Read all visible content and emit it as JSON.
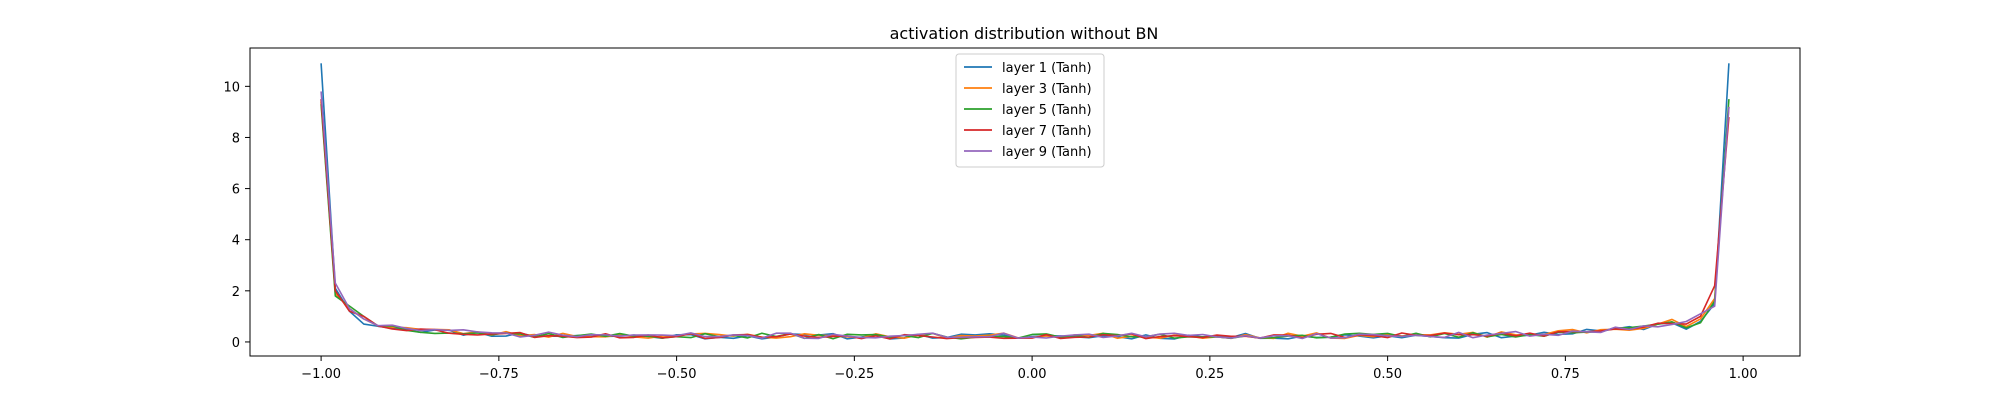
{
  "chart_data": {
    "type": "line",
    "title": "activation distribution without BN",
    "xlabel": "",
    "ylabel": "",
    "xlim": [
      -1.1,
      1.08
    ],
    "ylim": [
      -0.55,
      11.5
    ],
    "xticks": [
      -1.0,
      -0.75,
      -0.5,
      -0.25,
      0.0,
      0.25,
      0.5,
      0.75,
      1.0
    ],
    "xtick_labels": [
      "−1.00",
      "−0.75",
      "−0.50",
      "−0.25",
      "0.00",
      "0.25",
      "0.50",
      "0.75",
      "1.00"
    ],
    "yticks": [
      0,
      2,
      4,
      6,
      8,
      10
    ],
    "ytick_labels": [
      "0",
      "2",
      "4",
      "6",
      "8",
      "10"
    ],
    "grid": false,
    "legend_position": "top-center",
    "series": [
      {
        "name": "layer 1 (Tanh)",
        "color": "#1f77b4",
        "edge_values": [
          10.9,
          2.1,
          1.2,
          0.7
        ],
        "right_edge": [
          0.5,
          0.8,
          1.5,
          10.9
        ],
        "base": 0.22,
        "seed": 11
      },
      {
        "name": "layer 3 (Tanh)",
        "color": "#ff7f0e",
        "edge_values": [
          9.4,
          1.9,
          1.3,
          0.9
        ],
        "right_edge": [
          0.6,
          0.9,
          1.7,
          9.2
        ],
        "base": 0.24,
        "seed": 23
      },
      {
        "name": "layer 5 (Tanh)",
        "color": "#2ca02c",
        "edge_values": [
          9.3,
          1.8,
          1.4,
          1.0
        ],
        "right_edge": [
          0.55,
          0.75,
          1.6,
          9.5
        ],
        "base": 0.23,
        "seed": 37
      },
      {
        "name": "layer 7 (Tanh)",
        "color": "#d62728",
        "edge_values": [
          9.5,
          2.0,
          1.2,
          1.0
        ],
        "right_edge": [
          0.7,
          1.0,
          2.2,
          8.8
        ],
        "base": 0.23,
        "seed": 53
      },
      {
        "name": "layer 9 (Tanh)",
        "color": "#9467bd",
        "edge_values": [
          9.8,
          2.3,
          1.3,
          0.9
        ],
        "right_edge": [
          0.8,
          1.1,
          1.4,
          9.2
        ],
        "base": 0.24,
        "seed": 71
      }
    ]
  }
}
